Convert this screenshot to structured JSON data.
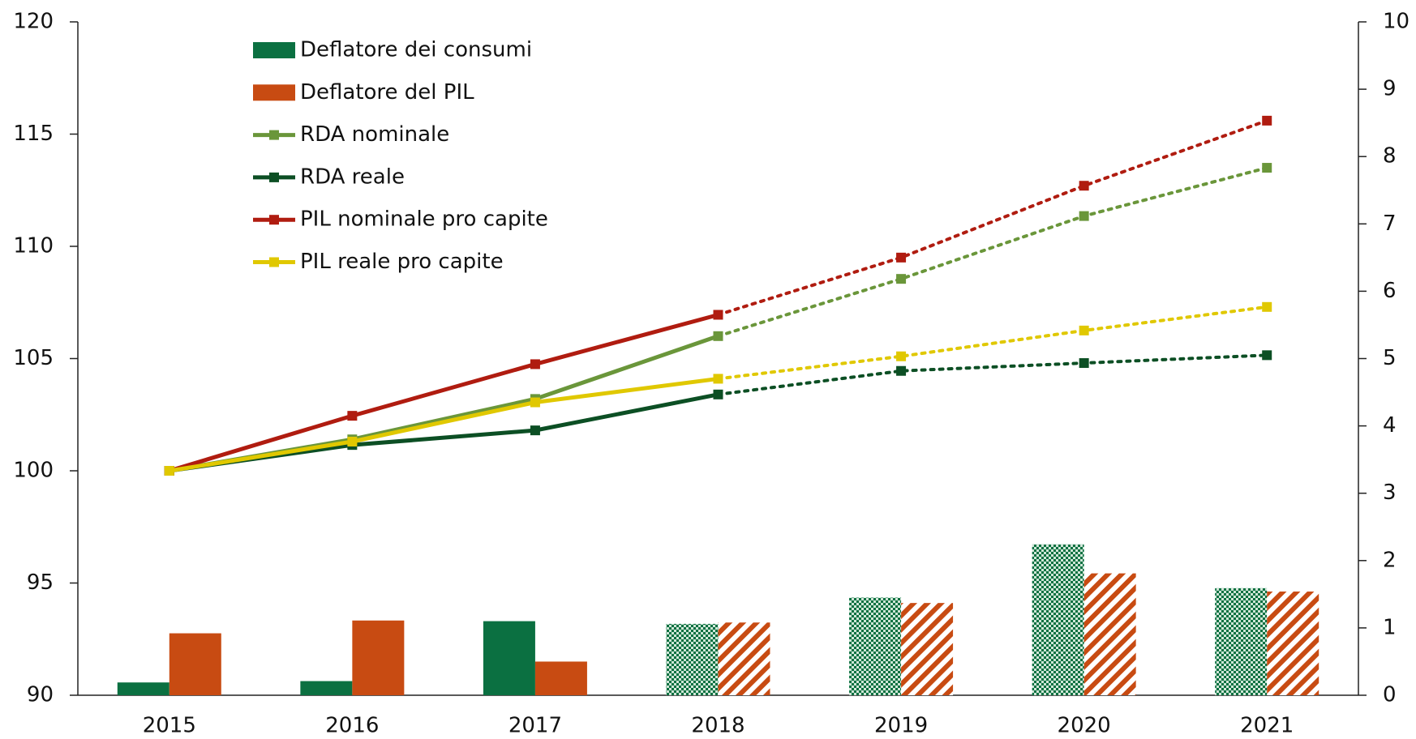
{
  "chart_data": {
    "type": "combo",
    "categories": [
      "2015",
      "2016",
      "2017",
      "2018",
      "2019",
      "2020",
      "2021"
    ],
    "projection_from": "2018",
    "ylim": [
      90,
      120
    ],
    "yticks": [
      90,
      95,
      100,
      105,
      110,
      115,
      120
    ],
    "y2lim": [
      0,
      10
    ],
    "y2ticks": [
      0,
      1,
      2,
      3,
      4,
      5,
      6,
      7,
      8,
      9,
      10
    ],
    "series": [
      {
        "name": "Deflatore dei consumi",
        "type": "bar",
        "axis": "y2",
        "color": "#0b7041",
        "values": [
          0.19,
          0.21,
          1.1,
          1.06,
          1.45,
          2.24,
          1.59
        ]
      },
      {
        "name": "Deflatore del PIL",
        "type": "bar",
        "axis": "y2",
        "color": "#c84b12",
        "values": [
          0.92,
          1.11,
          0.5,
          1.08,
          1.37,
          1.81,
          1.54
        ]
      },
      {
        "name": "RDA nominale",
        "type": "line",
        "color": "#6a963a",
        "values": [
          100,
          101.4,
          103.2,
          106.0,
          108.55,
          111.35,
          113.5
        ]
      },
      {
        "name": "RDA reale",
        "type": "line",
        "color": "#0c4f24",
        "values": [
          100,
          101.15,
          101.8,
          103.4,
          104.45,
          104.8,
          105.15
        ]
      },
      {
        "name": "PIL nominale pro capite",
        "type": "line",
        "color": "#b01c10",
        "values": [
          100,
          102.45,
          104.75,
          106.95,
          109.5,
          112.7,
          115.6
        ]
      },
      {
        "name": "PIL reale pro capite",
        "type": "line",
        "color": "#e0c800",
        "values": [
          100,
          101.3,
          103.05,
          104.1,
          105.1,
          106.25,
          107.3
        ]
      }
    ]
  }
}
